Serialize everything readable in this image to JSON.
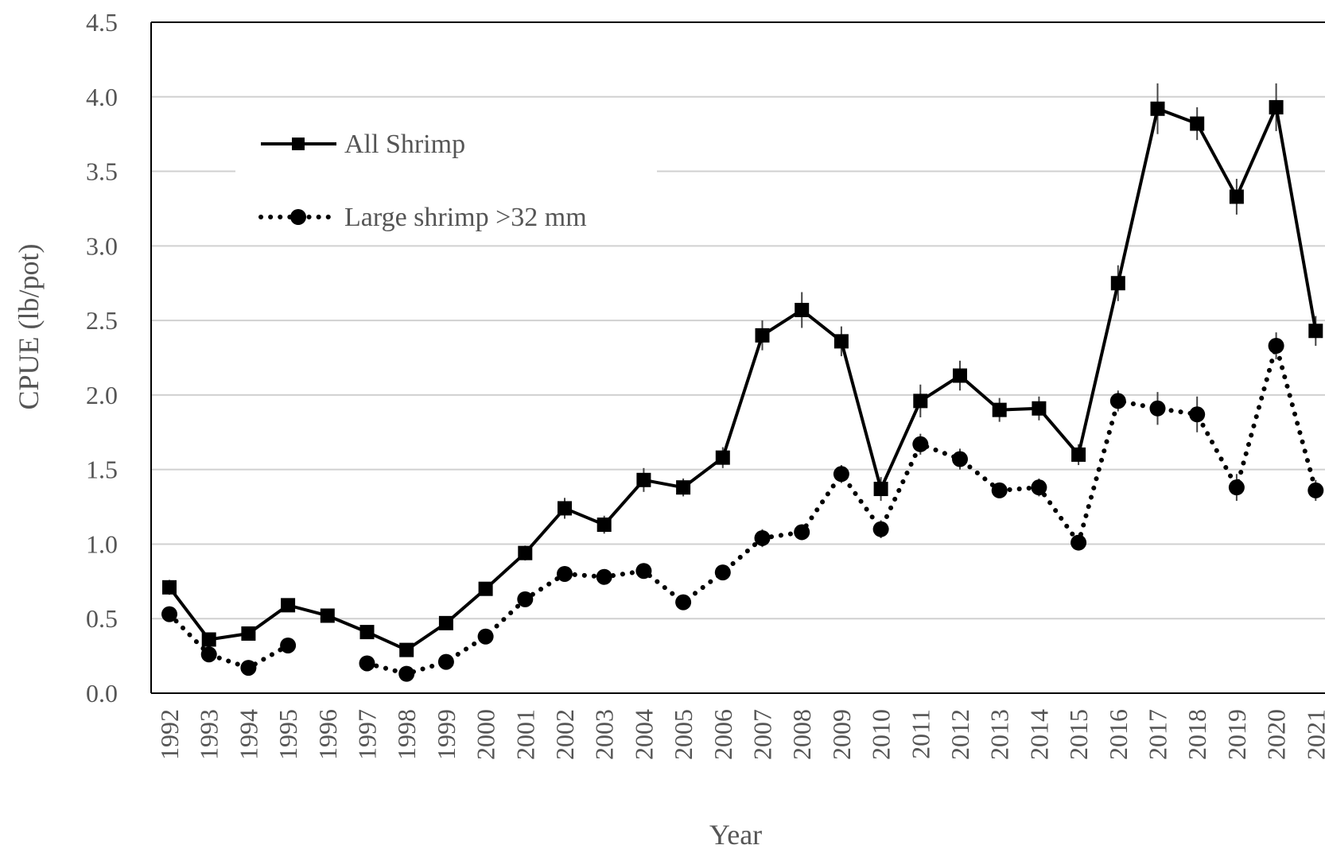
{
  "chart_data": {
    "type": "line",
    "title": "",
    "xlabel": "Year",
    "ylabel": "CPUE (lb/pot)",
    "ylim": [
      0,
      4.5
    ],
    "yticks": [
      "0.0",
      "0.5",
      "1.0",
      "1.5",
      "2.0",
      "2.5",
      "3.0",
      "3.5",
      "4.0",
      "4.5"
    ],
    "grid": true,
    "legend_position": "top-left",
    "categories": [
      "1992",
      "1993",
      "1994",
      "1995",
      "1996",
      "1997",
      "1998",
      "1999",
      "2000",
      "2001",
      "2002",
      "2003",
      "2004",
      "2005",
      "2006",
      "2007",
      "2008",
      "2009",
      "2010",
      "2011",
      "2012",
      "2013",
      "2014",
      "2015",
      "2016",
      "2017",
      "2018",
      "2019",
      "2020",
      "2021"
    ],
    "series": [
      {
        "name": "All Shrimp",
        "style": "solid",
        "marker": "square",
        "color": "#000000",
        "values": [
          0.71,
          0.36,
          0.4,
          0.59,
          0.52,
          0.41,
          0.29,
          0.47,
          0.7,
          0.94,
          1.24,
          1.13,
          1.43,
          1.38,
          1.58,
          2.4,
          2.57,
          2.36,
          1.37,
          1.96,
          2.13,
          1.9,
          1.91,
          1.6,
          2.75,
          3.92,
          3.82,
          3.33,
          3.93,
          2.43
        ],
        "error": [
          0.05,
          0.03,
          0.03,
          0.04,
          0.03,
          0.03,
          0.03,
          0.04,
          0.04,
          0.05,
          0.07,
          0.06,
          0.08,
          0.06,
          0.07,
          0.1,
          0.12,
          0.1,
          0.08,
          0.11,
          0.1,
          0.08,
          0.08,
          0.07,
          0.12,
          0.17,
          0.11,
          0.12,
          0.16,
          0.1
        ]
      },
      {
        "name": "Large shrimp >32 mm",
        "style": "dotted",
        "marker": "circle",
        "color": "#000000",
        "values": [
          0.53,
          0.26,
          0.17,
          0.32,
          null,
          0.2,
          0.13,
          0.21,
          0.38,
          0.63,
          0.8,
          0.78,
          0.82,
          0.61,
          0.81,
          1.04,
          1.08,
          1.47,
          1.1,
          1.67,
          1.57,
          1.36,
          1.38,
          1.01,
          1.96,
          1.91,
          1.87,
          1.38,
          2.33,
          1.36
        ],
        "error": [
          0.02,
          0.02,
          0.02,
          0.02,
          null,
          0.02,
          0.02,
          0.02,
          0.03,
          0.04,
          0.04,
          0.04,
          0.04,
          0.04,
          0.05,
          0.06,
          0.05,
          0.06,
          0.06,
          0.07,
          0.07,
          0.05,
          0.06,
          0.05,
          0.07,
          0.11,
          0.12,
          0.09,
          0.09,
          0.07
        ]
      }
    ]
  }
}
